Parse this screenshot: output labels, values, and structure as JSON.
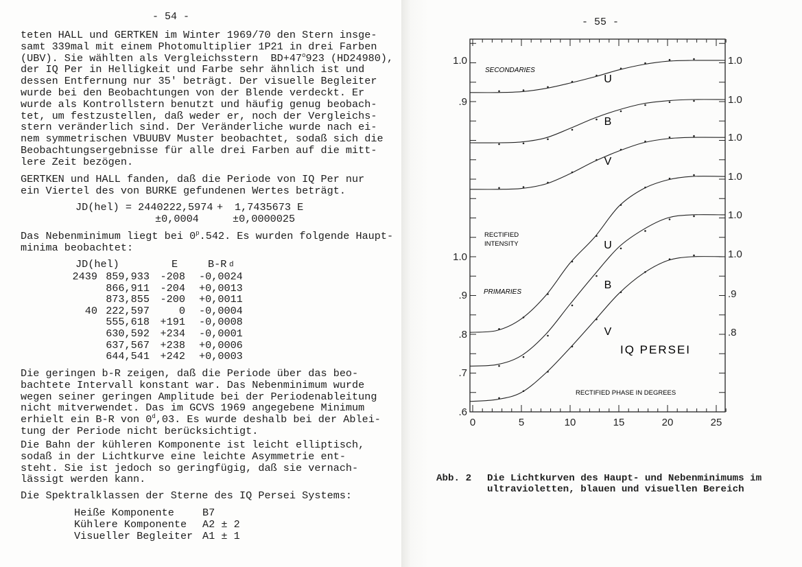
{
  "left": {
    "page_number": "- 54 -",
    "para1": [
      "teten HALL und GERTKEN im Winter 1969/70 den Stern insge-",
      "samt 339mal mit einem Photomultiplier 1P21 in drei Farben",
      [
        "(UBV). Sie wählten als Vergleichsstern  BD+47",
        "o",
        "923 (HD24980),"
      ],
      "der IQ Per in Helligkeit und Farbe sehr ähnlich ist und",
      "dessen Entfernung nur 35' beträgt. Der visuelle Begleiter",
      "wurde bei den Beobachtungen von der Blende verdeckt. Er",
      "wurde als Kontrollstern benutzt und häufig genug beobach-",
      "tet, um festzustellen, daß weder er, noch der Vergleichs-",
      "stern veränderlich sind. Der Veränderliche wurde nach ei-",
      "nem symmetrischen VBUUBV Muster beobachtet, sodaß sich die",
      "Beobachtungsergebnisse für alle drei Farben auf die mitt-",
      "lere Zeit bezögen."
    ],
    "para2": [
      "GERTKEN und HALL fanden, daß die Periode von IQ Per nur",
      "ein Viertel des von BURKE gefundenen Wertes beträgt."
    ],
    "formula": {
      "lhs": "JD(hel) = 2440222,5974",
      "plus": "+",
      "rhs": "1,7435673 E",
      "err1": "±0,0004",
      "err2": "±0,0000025"
    },
    "para3": [
      [
        "Das Nebenminimum liegt bei 0",
        "p",
        ".542. Es wurden folgende Haupt-"
      ],
      "minima beobachtet:"
    ],
    "minima_table": {
      "headers": [
        "JD(hel)",
        "E",
        "B-R"
      ],
      "unit": "d",
      "rows": [
        {
          "prefix": "2439",
          "jd": "859,933",
          "e": "-208",
          "br": "-0,0024"
        },
        {
          "prefix": "",
          "jd": "866,911",
          "e": "-204",
          "br": "+0,0013"
        },
        {
          "prefix": "",
          "jd": "873,855",
          "e": "-200",
          "br": "+0,0011"
        },
        {
          "prefix": "40",
          "jd": "222,597",
          "e": "0",
          "br": "-0,0004"
        },
        {
          "prefix": "",
          "jd": "555,618",
          "e": "+191",
          "br": "-0,0008"
        },
        {
          "prefix": "",
          "jd": "630,592",
          "e": "+234",
          "br": "-0,0001"
        },
        {
          "prefix": "",
          "jd": "637,567",
          "e": "+238",
          "br": "+0,0006"
        },
        {
          "prefix": "",
          "jd": "644,541",
          "e": "+242",
          "br": "+0,0003"
        }
      ]
    },
    "para4": [
      "Die geringen b-R zeigen, daß die Periode über das beo-",
      "bachtete Intervall konstant war. Das Nebenminimum wurde",
      "wegen seiner geringen Amplitude bei der Periodenableitung",
      "nicht mitverwendet. Das im GCVS 1969 angegebene Minimum",
      [
        "erhielt ein B-R von 0",
        "d",
        ",03. Es wurde deshalb bei der Ablei-"
      ],
      "tung der Periode nicht berücksichtigt."
    ],
    "para5": [
      "Die Bahn der kühleren Komponente ist leicht elliptisch,",
      "sodaß in der Lichtkurve eine leichte Asymmetrie ent-",
      "steht. Sie ist jedoch so geringfügig, daß sie vernach-",
      "lässigt werden kann."
    ],
    "para6": [
      "Die Spektralklassen der Sterne des IQ Persei Systems:"
    ],
    "spectral_classes": [
      {
        "component": "Heiße Komponente",
        "class": "B7"
      },
      {
        "component": "Kühlere Komponente",
        "class": "A2 ± 2"
      },
      {
        "component": "Visueller Begleiter",
        "class": "A1 ± 1"
      }
    ]
  },
  "right": {
    "page_number": "- 55 -",
    "caption": {
      "label": "Abb. 2",
      "line1": "Die Lichtkurven des Haupt- und Nebenminimums im",
      "line2": "ultravioletten, blauen und visuellen Bereich"
    }
  },
  "chart_data": {
    "type": "line",
    "title": "IQ PERSEI",
    "xlabel": "RECTIFIED PHASE IN DEGREES",
    "ylabel": "RECTIFIED INTENSITY",
    "xlim": [
      0,
      26
    ],
    "x_ticks": [
      "0",
      "5",
      "10",
      "15",
      "20",
      "25"
    ],
    "grid": false,
    "left_ticks_secondaries": [
      "1.0",
      ".9"
    ],
    "left_ticks_primaries": [
      "1.0",
      ".9",
      ".8",
      ".7",
      ".6"
    ],
    "right_ticks": [
      "1.0",
      "1.0",
      "1.0",
      "1.0",
      "1.0",
      "1.0",
      ".9",
      ".8"
    ],
    "panels": [
      {
        "name": "SECONDARIES",
        "x": [
          0,
          2.5,
          5,
          7.5,
          10,
          12.5,
          15,
          17.5,
          20,
          22.5,
          25
        ],
        "series": [
          {
            "name": "U",
            "values": [
              0.922,
              0.922,
              0.924,
              0.932,
              0.945,
              0.96,
              0.977,
              0.99,
              0.998,
              1.0,
              1.0
            ]
          },
          {
            "name": "B",
            "values": [
              0.8,
              0.8,
              0.802,
              0.812,
              0.835,
              0.86,
              0.88,
              0.895,
              0.902,
              0.905,
              0.905
            ]
          },
          {
            "name": "V",
            "values": [
              0.687,
              0.687,
              0.689,
              0.7,
              0.725,
              0.755,
              0.78,
              0.8,
              0.81,
              0.813,
              0.813
            ]
          }
        ]
      },
      {
        "name": "PRIMARIES",
        "x": [
          0,
          2.5,
          5,
          7.5,
          10,
          12.5,
          15,
          17.5,
          20,
          22.5,
          25
        ],
        "series": [
          {
            "name": "U",
            "values": [
              0.805,
              0.81,
              0.84,
              0.9,
              0.984,
              1.05,
              1.13,
              1.175,
              1.198,
              1.207,
              1.207
            ]
          },
          {
            "name": "B",
            "values": [
              0.718,
              0.722,
              0.745,
              0.8,
              0.878,
              0.954,
              1.025,
              1.07,
              1.1,
              1.108,
              1.108
            ]
          },
          {
            "name": "V",
            "values": [
              0.627,
              0.632,
              0.65,
              0.7,
              0.765,
              0.835,
              0.905,
              0.957,
              0.99,
              1.0,
              1.0
            ]
          }
        ]
      }
    ]
  }
}
